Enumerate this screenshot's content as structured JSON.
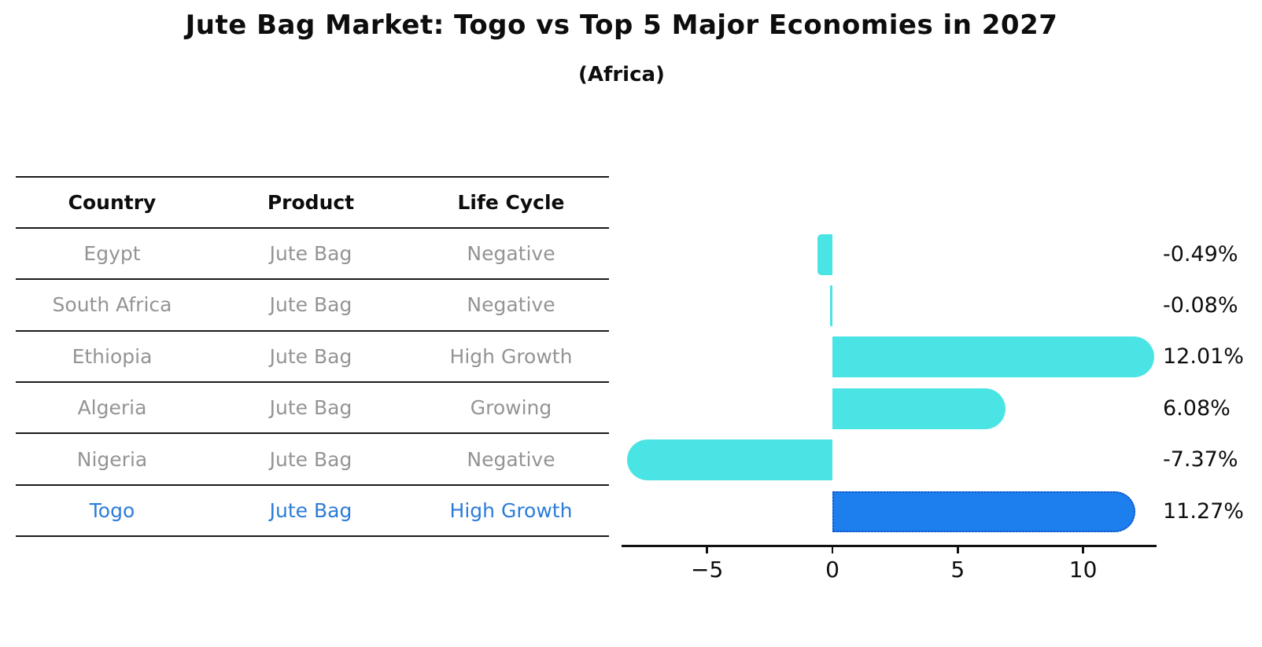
{
  "header": {
    "title": "Jute Bag Market: Togo vs Top 5 Major Economies in 2027",
    "subtitle": "(Africa)"
  },
  "table": {
    "columns": [
      "Country",
      "Product",
      "Life Cycle"
    ],
    "rows": [
      {
        "country": "Egypt",
        "product": "Jute Bag",
        "life_cycle": "Negative",
        "highlight": false
      },
      {
        "country": "South Africa",
        "product": "Jute Bag",
        "life_cycle": "Negative",
        "highlight": false
      },
      {
        "country": "Ethiopia",
        "product": "Jute Bag",
        "life_cycle": "High Growth",
        "highlight": false
      },
      {
        "country": "Algeria",
        "product": "Jute Bag",
        "life_cycle": "Growing",
        "highlight": false
      },
      {
        "country": "Nigeria",
        "product": "Jute Bag",
        "life_cycle": "Negative",
        "highlight": false
      },
      {
        "country": "Togo",
        "product": "Jute Bag",
        "life_cycle": "High Growth",
        "highlight": true
      }
    ]
  },
  "chart_data": {
    "type": "bar",
    "orientation": "horizontal",
    "title": "Jute Bag Market: Togo vs Top 5 Major Economies in 2027",
    "subtitle": "(Africa)",
    "categories": [
      "Egypt",
      "South Africa",
      "Ethiopia",
      "Algeria",
      "Nigeria",
      "Togo"
    ],
    "values": [
      -0.49,
      -0.08,
      12.01,
      6.08,
      -7.37,
      11.27
    ],
    "value_labels": [
      "-0.49%",
      "-0.08%",
      "12.01%",
      "6.08%",
      "-7.37%",
      "11.27%"
    ],
    "x_tick_values": [
      -5,
      0,
      5,
      10
    ],
    "x_tick_labels": [
      "−5",
      "0",
      "5",
      "10"
    ],
    "xlim": [
      -8.4,
      13.0
    ],
    "grid": false,
    "legend": false,
    "highlight_index": 5,
    "bar_color": "#4be4e4",
    "highlight_bar_color": "#1c7fed",
    "highlight_border_color": "#1253c8",
    "highlight_text_color": "#2b7cd9",
    "text_color": "#0d0d0d",
    "muted_text_color": "#949494"
  }
}
